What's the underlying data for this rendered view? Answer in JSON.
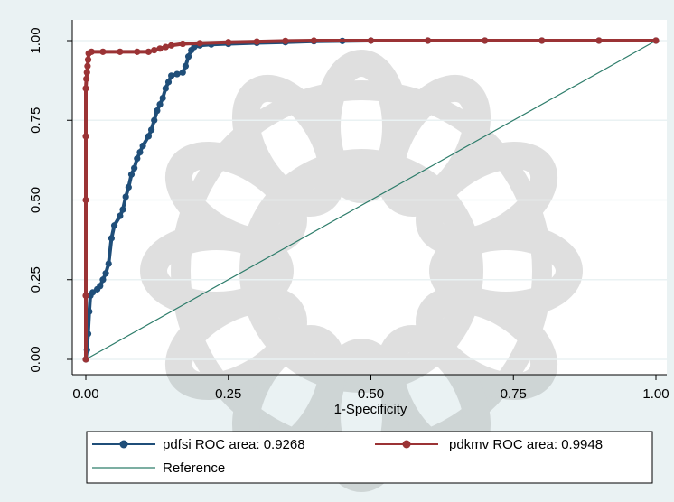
{
  "chart_data": {
    "type": "line",
    "xlabel": "1-Specificity",
    "ylabel": "",
    "xlim": [
      0,
      1
    ],
    "ylim": [
      0,
      1
    ],
    "x_ticks": [
      "0.00",
      "0.25",
      "0.50",
      "0.75",
      "1.00"
    ],
    "y_ticks": [
      "0.00",
      "0.25",
      "0.50",
      "0.75",
      "1.00"
    ],
    "grid": "horizontal",
    "legend_position": "bottom",
    "watermark": "decorative floral seal",
    "series": [
      {
        "name": "pdfsi ROC area: 0.9268",
        "color": "#1f4e79",
        "marker": "circle",
        "points": [
          [
            0.0,
            0.0
          ],
          [
            0.002,
            0.03
          ],
          [
            0.004,
            0.08
          ],
          [
            0.006,
            0.15
          ],
          [
            0.008,
            0.2
          ],
          [
            0.012,
            0.21
          ],
          [
            0.02,
            0.22
          ],
          [
            0.025,
            0.23
          ],
          [
            0.03,
            0.25
          ],
          [
            0.035,
            0.27
          ],
          [
            0.04,
            0.3
          ],
          [
            0.045,
            0.38
          ],
          [
            0.05,
            0.42
          ],
          [
            0.06,
            0.45
          ],
          [
            0.065,
            0.47
          ],
          [
            0.07,
            0.51
          ],
          [
            0.075,
            0.54
          ],
          [
            0.08,
            0.58
          ],
          [
            0.085,
            0.6
          ],
          [
            0.09,
            0.63
          ],
          [
            0.095,
            0.65
          ],
          [
            0.1,
            0.67
          ],
          [
            0.11,
            0.7
          ],
          [
            0.115,
            0.72
          ],
          [
            0.12,
            0.75
          ],
          [
            0.125,
            0.78
          ],
          [
            0.13,
            0.8
          ],
          [
            0.135,
            0.82
          ],
          [
            0.14,
            0.85
          ],
          [
            0.145,
            0.87
          ],
          [
            0.15,
            0.89
          ],
          [
            0.16,
            0.895
          ],
          [
            0.17,
            0.9
          ],
          [
            0.175,
            0.92
          ],
          [
            0.18,
            0.95
          ],
          [
            0.185,
            0.97
          ],
          [
            0.19,
            0.98
          ],
          [
            0.2,
            0.985
          ],
          [
            0.22,
            0.988
          ],
          [
            0.25,
            0.99
          ],
          [
            0.3,
            0.993
          ],
          [
            0.35,
            0.995
          ],
          [
            0.4,
            0.998
          ],
          [
            0.45,
            0.999
          ],
          [
            0.5,
            1.0
          ],
          [
            0.6,
            1.0
          ],
          [
            0.7,
            1.0
          ],
          [
            0.8,
            1.0
          ],
          [
            0.9,
            1.0
          ],
          [
            1.0,
            1.0
          ]
        ]
      },
      {
        "name": "pdkmv ROC area: 0.9948",
        "color": "#9b3335",
        "marker": "circle",
        "points": [
          [
            0.0,
            0.0
          ],
          [
            0.0,
            0.2
          ],
          [
            0.0,
            0.5
          ],
          [
            0.0,
            0.7
          ],
          [
            0.0,
            0.85
          ],
          [
            0.001,
            0.88
          ],
          [
            0.002,
            0.9
          ],
          [
            0.003,
            0.92
          ],
          [
            0.004,
            0.94
          ],
          [
            0.005,
            0.96
          ],
          [
            0.01,
            0.965
          ],
          [
            0.03,
            0.965
          ],
          [
            0.06,
            0.965
          ],
          [
            0.09,
            0.965
          ],
          [
            0.11,
            0.965
          ],
          [
            0.12,
            0.97
          ],
          [
            0.13,
            0.975
          ],
          [
            0.14,
            0.98
          ],
          [
            0.15,
            0.985
          ],
          [
            0.17,
            0.99
          ],
          [
            0.2,
            0.992
          ],
          [
            0.25,
            0.995
          ],
          [
            0.3,
            0.997
          ],
          [
            0.35,
            0.999
          ],
          [
            0.4,
            1.0
          ],
          [
            0.5,
            1.0
          ],
          [
            0.6,
            1.0
          ],
          [
            0.7,
            1.0
          ],
          [
            0.8,
            1.0
          ],
          [
            0.9,
            1.0
          ],
          [
            1.0,
            1.0
          ]
        ]
      },
      {
        "name": "Reference",
        "color": "#2e7d6b",
        "marker": "none",
        "points": [
          [
            0,
            0
          ],
          [
            1,
            1
          ]
        ]
      }
    ]
  }
}
